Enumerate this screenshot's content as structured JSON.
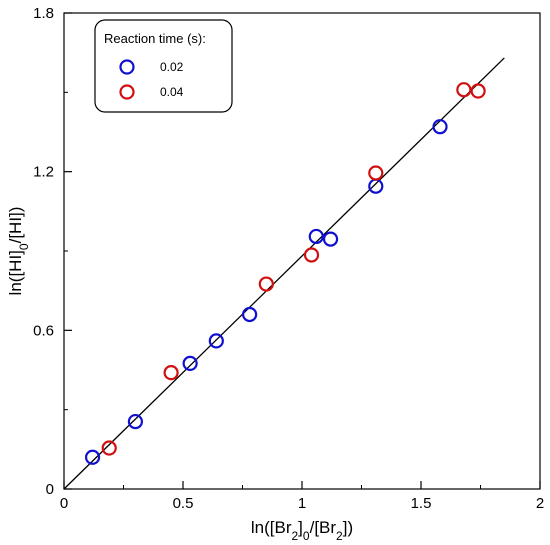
{
  "chart_data": {
    "type": "scatter",
    "xlabel": {
      "prefix": "ln([Br",
      "sub1": "2",
      "mid": "]",
      "sub2": "0",
      "mid2": "/[Br",
      "sub3": "2",
      "suffix": "])"
    },
    "ylabel": {
      "prefix": "ln([HI]",
      "sub": "0",
      "suffix": "/[HI])"
    },
    "xlim": [
      0,
      2
    ],
    "ylim": [
      0,
      1.8
    ],
    "x_ticks": [
      0,
      0.5,
      1,
      1.5,
      2
    ],
    "x_tick_labels": [
      "0",
      "0.5",
      "1",
      "1.5",
      "2"
    ],
    "y_ticks": [
      0,
      0.6,
      1.2,
      1.8
    ],
    "y_tick_labels": [
      "0",
      "0.6",
      "1.2",
      "1.8"
    ],
    "legend": {
      "title": "Reaction time (s):",
      "placement": "top-left"
    },
    "series": [
      {
        "name": "0.02",
        "color": "#1010d0",
        "marker": "open-circle",
        "points": [
          {
            "x": 0.12,
            "y": 0.12
          },
          {
            "x": 0.3,
            "y": 0.255
          },
          {
            "x": 0.53,
            "y": 0.475
          },
          {
            "x": 0.64,
            "y": 0.56
          },
          {
            "x": 0.78,
            "y": 0.66
          },
          {
            "x": 1.06,
            "y": 0.955
          },
          {
            "x": 1.12,
            "y": 0.945
          },
          {
            "x": 1.31,
            "y": 1.145
          },
          {
            "x": 1.58,
            "y": 1.37
          }
        ]
      },
      {
        "name": "0.04",
        "color": "#d01010",
        "marker": "open-circle",
        "points": [
          {
            "x": 0.19,
            "y": 0.155
          },
          {
            "x": 0.45,
            "y": 0.44
          },
          {
            "x": 0.85,
            "y": 0.775
          },
          {
            "x": 1.04,
            "y": 0.885
          },
          {
            "x": 1.31,
            "y": 1.195
          },
          {
            "x": 1.68,
            "y": 1.51
          },
          {
            "x": 1.74,
            "y": 1.505
          }
        ]
      }
    ],
    "fit_line": {
      "x": [
        0,
        1.85
      ],
      "y": [
        0,
        1.63
      ],
      "color": "#000000"
    }
  }
}
